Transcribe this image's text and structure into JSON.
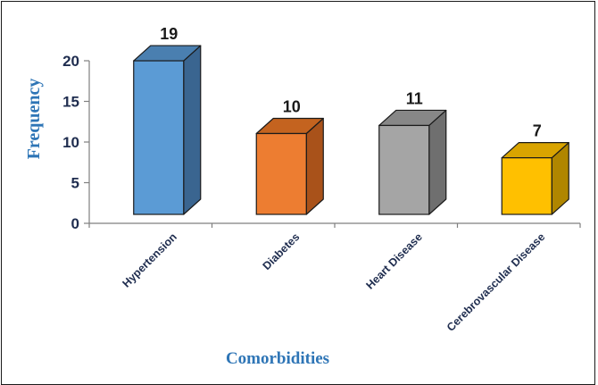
{
  "chart_data": {
    "type": "bar",
    "style": "3d-column",
    "xlabel": "Comorbidities",
    "ylabel": "Frequency",
    "ylim": [
      0,
      20
    ],
    "yticks": [
      0,
      5,
      10,
      15,
      20
    ],
    "grid": false,
    "categories": [
      "Hypertension",
      "Diabetes",
      "Heart Disease",
      "Cerebrovascular Disease"
    ],
    "values": [
      19,
      10,
      11,
      7
    ],
    "data_labels": [
      "19",
      "10",
      "11",
      "7"
    ],
    "colors": {
      "front": [
        "#5b9bd5",
        "#ed7d31",
        "#a5a5a5",
        "#ffc000"
      ],
      "top": [
        "#4a7fb0",
        "#c4631f",
        "#878787",
        "#d9a400"
      ],
      "side": [
        "#3a6590",
        "#a9521a",
        "#6f6f6f",
        "#b08600"
      ],
      "outline": "#1a1a1a",
      "axis_title": "#2e75b6",
      "tick_text": "#1f2d4f"
    }
  }
}
